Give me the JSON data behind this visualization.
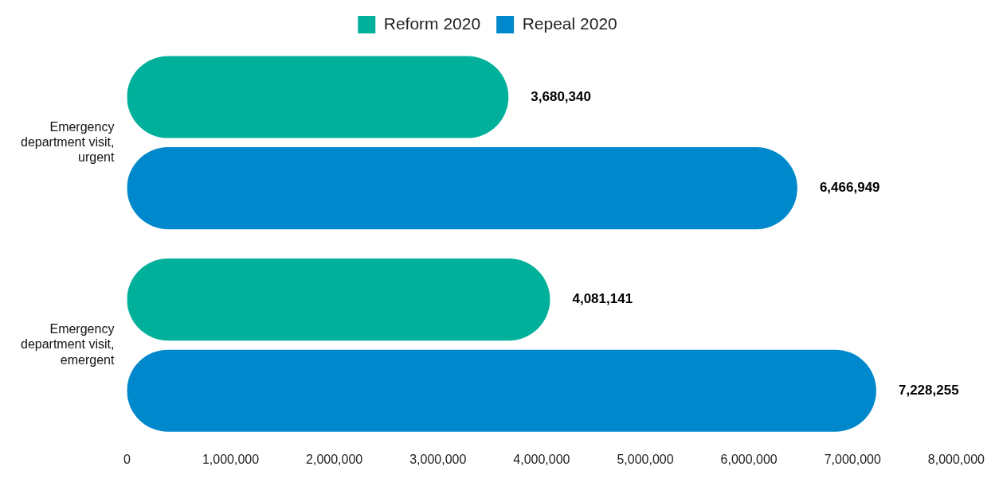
{
  "chart_data": {
    "type": "bar",
    "orientation": "horizontal",
    "legend": "top",
    "grid": false,
    "categories": [
      "Emergency department visit, urgent",
      "Emergency department visit, emergent"
    ],
    "series": [
      {
        "name": "Reform 2020",
        "color": "#00b09b",
        "values": [
          3680340,
          4081141
        ],
        "value_labels": [
          "3,680,340",
          "4,081,141"
        ]
      },
      {
        "name": "Repeal 2020",
        "color": "#0088cc",
        "values": [
          6466949,
          7228255
        ],
        "value_labels": [
          "6,466,949",
          "7,228,255"
        ]
      }
    ],
    "xlim": [
      0,
      8000000
    ],
    "xticks": [
      0,
      {
        "value": 1000000,
        "label": "1,000,000"
      },
      {
        "value": 2000000,
        "label": "2,000,000"
      },
      {
        "value": 3000000,
        "label": "3,000,000"
      },
      {
        "value": 4000000,
        "label": "4,000,000"
      },
      {
        "value": 5000000,
        "label": "5,000,000"
      },
      {
        "value": 6000000,
        "label": "6,000,000"
      },
      {
        "value": 7000000,
        "label": "7,000,000"
      },
      {
        "value": 8000000,
        "label": "8,000,000"
      }
    ]
  }
}
